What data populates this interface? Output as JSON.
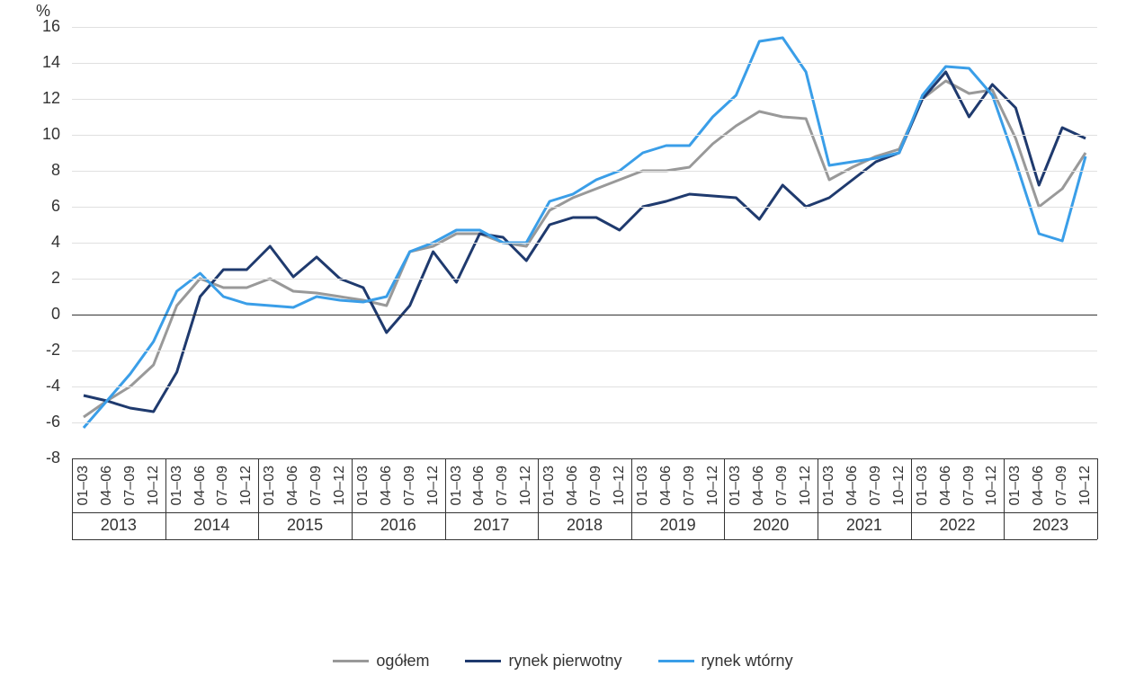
{
  "chart": {
    "type": "line",
    "y_unit": "%",
    "ylim": [
      -8,
      16
    ],
    "ytick_step": 2,
    "yticks": [
      -8,
      -6,
      -4,
      -2,
      0,
      2,
      4,
      6,
      8,
      10,
      12,
      14,
      16
    ],
    "background_color": "#ffffff",
    "grid_color": "#e0e0e0",
    "axis_color": "#333333",
    "text_color": "#333333",
    "fontsize_axis": 18,
    "fontsize_legend": 18,
    "line_width": 3,
    "years": [
      "2013",
      "2014",
      "2015",
      "2016",
      "2017",
      "2018",
      "2019",
      "2020",
      "2021",
      "2022",
      "2023"
    ],
    "quarters": [
      "01–03",
      "04–06",
      "07–09",
      "10–12"
    ],
    "num_points": 44,
    "series": [
      {
        "name": "ogółem",
        "color": "#999999",
        "values": [
          -5.7,
          -4.8,
          -4.0,
          -2.8,
          0.5,
          2.0,
          1.5,
          1.5,
          2.0,
          1.3,
          1.2,
          1.0,
          0.8,
          0.5,
          3.5,
          3.8,
          4.5,
          4.5,
          4.0,
          3.8,
          5.8,
          6.5,
          7.0,
          7.5,
          8.0,
          8.0,
          8.2,
          9.5,
          10.5,
          11.3,
          11.0,
          10.9,
          7.5,
          8.2,
          8.8,
          9.2,
          12.0,
          13.0,
          12.3,
          12.5,
          9.8,
          6.0,
          7.0,
          9.0
        ]
      },
      {
        "name": "rynek pierwotny",
        "color": "#1f3a6e",
        "values": [
          -4.5,
          -4.8,
          -5.2,
          -5.4,
          -3.2,
          1.0,
          2.5,
          2.5,
          3.8,
          2.1,
          3.2,
          2.0,
          1.5,
          -1.0,
          0.5,
          3.5,
          1.8,
          4.5,
          4.3,
          3.0,
          5.0,
          5.4,
          5.4,
          4.7,
          6.0,
          6.3,
          6.7,
          6.6,
          6.5,
          5.3,
          7.2,
          6.0,
          6.5,
          7.5,
          8.5,
          9.0,
          12.0,
          13.5,
          11.0,
          12.8,
          11.5,
          7.2,
          10.4,
          9.8
        ]
      },
      {
        "name": "rynek wtórny",
        "color": "#3a9ee8",
        "values": [
          -6.3,
          -4.8,
          -3.3,
          -1.5,
          1.3,
          2.3,
          1.0,
          0.6,
          0.5,
          0.4,
          1.0,
          0.8,
          0.7,
          1.0,
          3.5,
          4.0,
          4.7,
          4.7,
          4.0,
          4.0,
          6.3,
          6.7,
          7.5,
          8.0,
          9.0,
          9.4,
          9.4,
          11.0,
          12.2,
          15.2,
          15.4,
          13.5,
          8.3,
          8.5,
          8.7,
          9.0,
          12.2,
          13.8,
          13.7,
          12.2,
          8.5,
          4.5,
          4.1,
          8.8
        ]
      }
    ],
    "legend_labels": [
      "ogółem",
      "rynek pierwotny",
      "rynek wtórny"
    ]
  }
}
